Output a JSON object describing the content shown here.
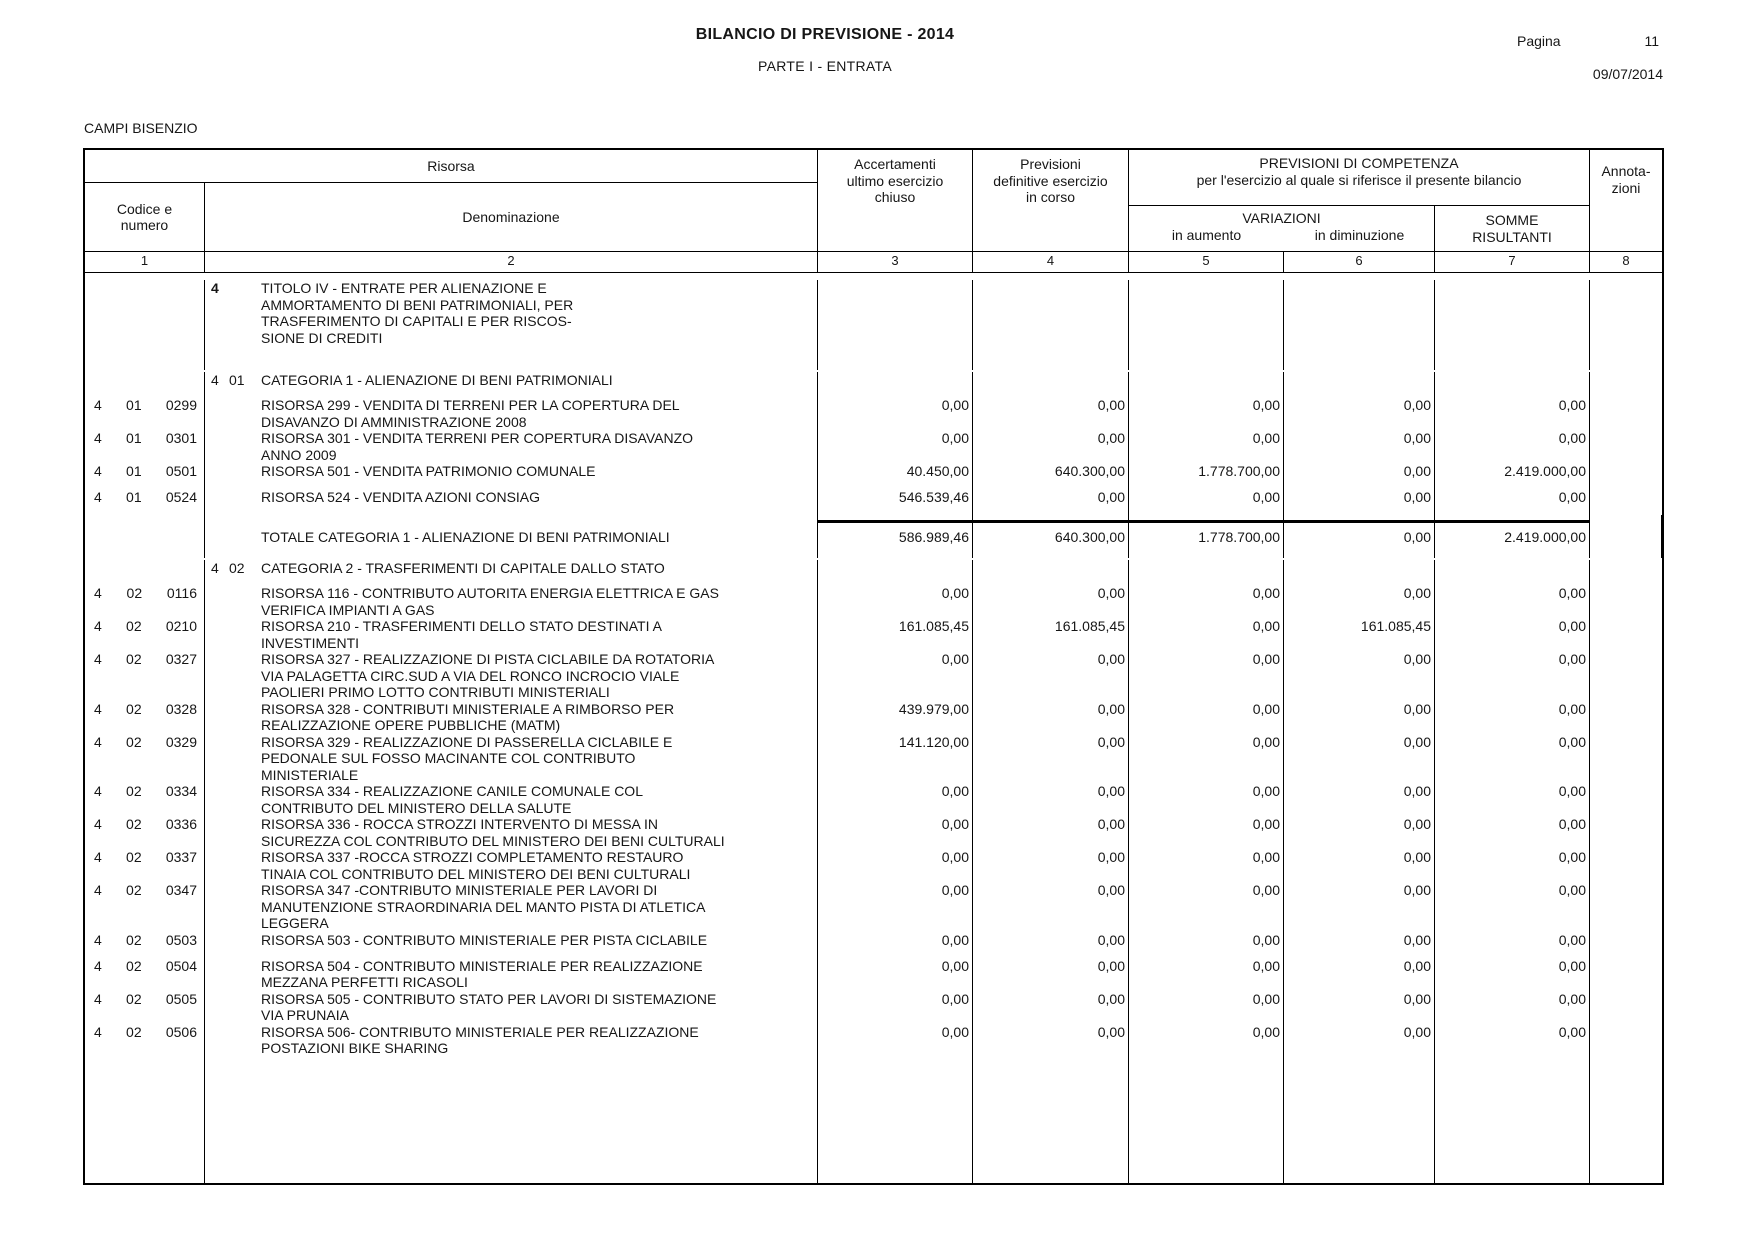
{
  "colors": {
    "paper": "#ffffff",
    "ink": "#161616",
    "line": "#000000"
  },
  "page": {
    "title": "BILANCIO DI PREVISIONE - 2014",
    "subtitle": "PARTE I - ENTRATA",
    "page_label": "Pagina",
    "page_number": "11",
    "date": "09/07/2014",
    "entity": "CAMPI BISENZIO"
  },
  "table": {
    "headers": {
      "risorsa": "Risorsa",
      "codice": "Codice e\nnumero",
      "denominazione": "Denominazione",
      "accertamenti": "Accertamenti\nultimo esercizio\nchiuso",
      "previsioni_definitive": "Previsioni\ndefinitive esercizio\nin corso",
      "competenza_line1": "PREVISIONI DI COMPETENZA",
      "competenza_line2": "per l'esercizio al quale si riferisce il presente bilancio",
      "variazioni": "VARIAZIONI",
      "in_aumento": "in aumento",
      "in_diminuzione": "in diminuzione",
      "somme_risultanti": "SOMME\nRISULTANTI",
      "annotazioni": "Annota-\nzioni"
    },
    "column_numbers": [
      "1",
      "2",
      "3",
      "4",
      "5",
      "6",
      "7",
      "8"
    ],
    "rows": [
      {
        "type": "titolo",
        "code": [
          "4"
        ],
        "text": "TITOLO IV - ENTRATE PER ALIENAZIONE E\nAMMORTAMENTO DI BENI PATRIMONIALI, PER\nTRASFERIMENTO DI CAPITALI E PER RISCOS-\nSIONE DI CREDITI",
        "values": null
      },
      {
        "type": "categoria",
        "code": [
          "4",
          "01"
        ],
        "text": "CATEGORIA 1 - ALIENAZIONE DI BENI PATRIMONIALI",
        "values": null
      },
      {
        "type": "risorsa",
        "code": [
          "4",
          "01",
          "0299"
        ],
        "text": "RISORSA 299 - VENDITA DI TERRENI PER LA COPERTURA DEL\nDISAVANZO DI AMMINISTRAZIONE 2008",
        "values": [
          "0,00",
          "0,00",
          "0,00",
          "0,00",
          "0,00"
        ]
      },
      {
        "type": "risorsa",
        "code": [
          "4",
          "01",
          "0301"
        ],
        "text": "RISORSA 301 - VENDITA TERRENI PER COPERTURA DISAVANZO\nANNO 2009",
        "values": [
          "0,00",
          "0,00",
          "0,00",
          "0,00",
          "0,00"
        ]
      },
      {
        "type": "risorsa",
        "code": [
          "4",
          "01",
          "0501"
        ],
        "text": "RISORSA 501 - VENDITA PATRIMONIO COMUNALE",
        "values": [
          "40.450,00",
          "640.300,00",
          "1.778.700,00",
          "0,00",
          "2.419.000,00"
        ]
      },
      {
        "type": "risorsa",
        "code": [
          "4",
          "01",
          "0524"
        ],
        "text": "RISORSA 524 - VENDITA AZIONI CONSIAG",
        "values": [
          "546.539,46",
          "0,00",
          "0,00",
          "0,00",
          "0,00"
        ]
      },
      {
        "type": "totale",
        "code": [],
        "text": "TOTALE CATEGORIA 1 - ALIENAZIONE DI BENI PATRIMONIALI",
        "values": [
          "586.989,46",
          "640.300,00",
          "1.778.700,00",
          "0,00",
          "2.419.000,00"
        ]
      },
      {
        "type": "categoria",
        "code": [
          "4",
          "02"
        ],
        "text": "CATEGORIA 2 - TRASFERIMENTI DI CAPITALE DALLO STATO",
        "values": null
      },
      {
        "type": "risorsa",
        "code": [
          "4",
          "02",
          "0116"
        ],
        "text": "RISORSA 116 - CONTRIBUTO AUTORITA ENERGIA ELETTRICA E GAS\nVERIFICA IMPIANTI A GAS",
        "values": [
          "0,00",
          "0,00",
          "0,00",
          "0,00",
          "0,00"
        ]
      },
      {
        "type": "risorsa",
        "code": [
          "4",
          "02",
          "0210"
        ],
        "text": "RISORSA 210 - TRASFERIMENTI DELLO STATO DESTINATI A\nINVESTIMENTI",
        "values": [
          "161.085,45",
          "161.085,45",
          "0,00",
          "161.085,45",
          "0,00"
        ]
      },
      {
        "type": "risorsa",
        "code": [
          "4",
          "02",
          "0327"
        ],
        "text": "RISORSA 327 - REALIZZAZIONE DI PISTA CICLABILE DA ROTATORIA\nVIA PALAGETTA CIRC.SUD A VIA DEL RONCO INCROCIO VIALE\nPAOLIERI PRIMO LOTTO CONTRIBUTI MINISTERIALI",
        "values": [
          "0,00",
          "0,00",
          "0,00",
          "0,00",
          "0,00"
        ]
      },
      {
        "type": "risorsa",
        "code": [
          "4",
          "02",
          "0328"
        ],
        "text": "RISORSA 328 - CONTRIBUTI MINISTERIALE A RIMBORSO PER\nREALIZZAZIONE OPERE PUBBLICHE (MATM)",
        "values": [
          "439.979,00",
          "0,00",
          "0,00",
          "0,00",
          "0,00"
        ]
      },
      {
        "type": "risorsa",
        "code": [
          "4",
          "02",
          "0329"
        ],
        "text": "RISORSA 329 - REALIZZAZIONE DI PASSERELLA CICLABILE E\nPEDONALE SUL FOSSO MACINANTE COL CONTRIBUTO\nMINISTERIALE",
        "values": [
          "141.120,00",
          "0,00",
          "0,00",
          "0,00",
          "0,00"
        ]
      },
      {
        "type": "risorsa",
        "code": [
          "4",
          "02",
          "0334"
        ],
        "text": "RISORSA 334 - REALIZZAZIONE CANILE COMUNALE COL\nCONTRIBUTO DEL MINISTERO DELLA SALUTE",
        "values": [
          "0,00",
          "0,00",
          "0,00",
          "0,00",
          "0,00"
        ]
      },
      {
        "type": "risorsa",
        "code": [
          "4",
          "02",
          "0336"
        ],
        "text": "RISORSA 336 - ROCCA STROZZI INTERVENTO DI MESSA IN\nSICUREZZA COL CONTRIBUTO DEL MINISTERO DEI BENI CULTURALI",
        "values": [
          "0,00",
          "0,00",
          "0,00",
          "0,00",
          "0,00"
        ]
      },
      {
        "type": "risorsa",
        "code": [
          "4",
          "02",
          "0337"
        ],
        "text": "RISORSA 337 -ROCCA STROZZI COMPLETAMENTO RESTAURO\nTINAIA COL CONTRIBUTO DEL MINISTERO DEI BENI CULTURALI",
        "values": [
          "0,00",
          "0,00",
          "0,00",
          "0,00",
          "0,00"
        ]
      },
      {
        "type": "risorsa",
        "code": [
          "4",
          "02",
          "0347"
        ],
        "text": "RISORSA 347 -CONTRIBUTO MINISTERIALE PER LAVORI DI\nMANUTENZIONE STRAORDINARIA DEL MANTO PISTA DI ATLETICA\nLEGGERA",
        "values": [
          "0,00",
          "0,00",
          "0,00",
          "0,00",
          "0,00"
        ]
      },
      {
        "type": "risorsa",
        "code": [
          "4",
          "02",
          "0503"
        ],
        "text": "RISORSA 503 - CONTRIBUTO MINISTERIALE PER PISTA CICLABILE",
        "values": [
          "0,00",
          "0,00",
          "0,00",
          "0,00",
          "0,00"
        ]
      },
      {
        "type": "risorsa",
        "code": [
          "4",
          "02",
          "0504"
        ],
        "text": "RISORSA 504 - CONTRIBUTO MINISTERIALE PER REALIZZAZIONE\nMEZZANA PERFETTI RICASOLI",
        "values": [
          "0,00",
          "0,00",
          "0,00",
          "0,00",
          "0,00"
        ]
      },
      {
        "type": "risorsa",
        "code": [
          "4",
          "02",
          "0505"
        ],
        "text": "RISORSA 505 - CONTRIBUTO STATO PER LAVORI DI SISTEMAZIONE\nVIA PRUNAIA",
        "values": [
          "0,00",
          "0,00",
          "0,00",
          "0,00",
          "0,00"
        ]
      },
      {
        "type": "risorsa",
        "code": [
          "4",
          "02",
          "0506"
        ],
        "text": "RISORSA 506- CONTRIBUTO MINISTERIALE PER REALIZZAZIONE\nPOSTAZIONI BIKE SHARING",
        "values": [
          "0,00",
          "0,00",
          "0,00",
          "0,00",
          "0,00"
        ]
      }
    ]
  }
}
